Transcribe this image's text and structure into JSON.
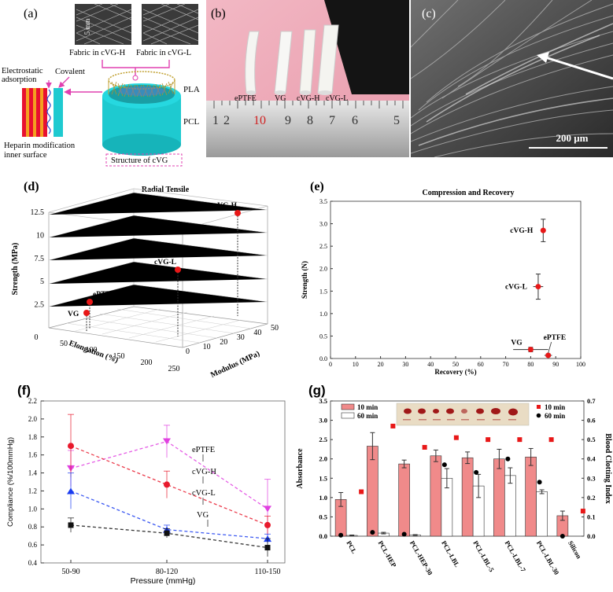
{
  "panel_a": {
    "label": "(a)",
    "scale_label": "5 mm",
    "fabric_h": "Fabric in cVG-H",
    "fabric_l": "Fabric in cVG-L",
    "electrostatic": "Electrostatic\nadsorption",
    "covalent": "Covalent",
    "pla": "PLA",
    "pcl": "PCL",
    "heparin": "Heparin modification\ninner surface",
    "structure": "Structure of cVG"
  },
  "panel_b": {
    "label": "(b)",
    "samples": [
      "ePTFE",
      "VG",
      "cVG-H",
      "cVG-L"
    ],
    "ruler_numbers": [
      "1",
      "2",
      "10",
      "9",
      "8",
      "7",
      "6",
      "5"
    ]
  },
  "panel_c": {
    "label": "(c)",
    "scale_label": "200 μm"
  },
  "panel_d": {
    "label": "(d)",
    "chart_data": {
      "type": "scatter",
      "title": "Radial Tensile",
      "xlabel": "Elongation (%)",
      "ylabel": "Modulus (MPa)",
      "zlabel": "Strength (MPa)",
      "x_ticks": [
        "0",
        "50",
        "100",
        "150",
        "200",
        "250"
      ],
      "y_ticks": [
        "0",
        "10",
        "20",
        "30",
        "40",
        "50"
      ],
      "z_ticks": [
        "2.5",
        "5",
        "7.5",
        "10",
        "12.5"
      ],
      "points": [
        {
          "name": "cVG-H",
          "elongation": 230,
          "modulus": 45,
          "strength": 12
        },
        {
          "name": "cVG-L",
          "elongation": 150,
          "modulus": 30,
          "strength": 6.8
        },
        {
          "name": "ePTFE",
          "elongation": 90,
          "modulus": 5,
          "strength": 3.2
        },
        {
          "name": "VG",
          "elongation": 85,
          "modulus": 2,
          "strength": 2.2
        }
      ]
    }
  },
  "panel_e": {
    "label": "(e)",
    "chart_data": {
      "type": "scatter",
      "title": "Compression and Recovery",
      "xlabel": "Recovery (%)",
      "ylabel": "Strength (N)",
      "xlim": [
        0,
        100
      ],
      "ylim": [
        0,
        3.5
      ],
      "x_ticks": [
        "0",
        "10",
        "20",
        "30",
        "40",
        "50",
        "60",
        "70",
        "80",
        "90",
        "100"
      ],
      "y_ticks": [
        "0.0",
        "0.5",
        "1.0",
        "1.5",
        "2.0",
        "2.5",
        "3.0",
        "3.5"
      ],
      "points": [
        {
          "name": "cVG-H",
          "x": 85,
          "y": 2.85,
          "xerr": 1,
          "yerr": 0.25
        },
        {
          "name": "cVG-L",
          "x": 83,
          "y": 1.6,
          "xerr": 2,
          "yerr": 0.28
        },
        {
          "name": "VG",
          "x": 80,
          "y": 0.2,
          "xerr": 7,
          "yerr": 0.05
        },
        {
          "name": "ePTFE",
          "x": 87,
          "y": 0.07,
          "xerr": 1.5,
          "yerr": 0.03
        }
      ]
    }
  },
  "panel_f": {
    "label": "(f)",
    "chart_data": {
      "type": "line",
      "xlabel": "Pressure (mmHg)",
      "ylabel": "Compliance (%/100mmHg)",
      "categories": [
        "50-90",
        "80-120",
        "110-150"
      ],
      "ylim": [
        0.4,
        2.2
      ],
      "y_ticks": [
        "0.4",
        "0.6",
        "0.8",
        "1.0",
        "1.2",
        "1.4",
        "1.6",
        "1.8",
        "2.0",
        "2.2"
      ],
      "series": [
        {
          "name": "ePTFE",
          "color": "#e040e0",
          "values": [
            1.45,
            1.75,
            1.0
          ],
          "errors": [
            0.2,
            0.18,
            0.33
          ]
        },
        {
          "name": "cVG-H",
          "color": "#e8192c",
          "values": [
            1.7,
            1.27,
            0.82
          ],
          "errors": [
            0.35,
            0.15,
            0.1
          ]
        },
        {
          "name": "cVG-L",
          "color": "#1a3cf0",
          "values": [
            1.2,
            0.77,
            0.67
          ],
          "errors": [
            0.2,
            0.05,
            0.05
          ]
        },
        {
          "name": "VG",
          "color": "#111111",
          "values": [
            0.82,
            0.73,
            0.57
          ],
          "errors": [
            0.08,
            0.05,
            0.1
          ]
        }
      ]
    }
  },
  "panel_g": {
    "label": "(g)",
    "chart_data": {
      "type": "bar",
      "ylabel": "Absorbance",
      "y2label": "Blood Clotting Index",
      "ylim": [
        0,
        3.5
      ],
      "y2lim": [
        0,
        0.7
      ],
      "y_ticks": [
        "0.0",
        "0.5",
        "1.0",
        "1.5",
        "2.0",
        "2.5",
        "3.0",
        "3.5"
      ],
      "y2_ticks": [
        "0.0",
        "0.1",
        "0.2",
        "0.3",
        "0.4",
        "0.5",
        "0.6",
        "0.7"
      ],
      "categories": [
        "PCL",
        "PCL-HEP",
        "PCL-HEP-30",
        "PCL-LBL",
        "PCL-LBL-5",
        "PCL-LBL-7",
        "PCL-LBL-30",
        "Silicon"
      ],
      "series": [
        {
          "name": "10 min",
          "values": [
            0.95,
            2.33,
            1.87,
            2.08,
            2.03,
            2.0,
            2.05,
            0.53
          ],
          "errors": [
            0.18,
            0.35,
            0.1,
            0.15,
            0.15,
            0.25,
            0.22,
            0.12
          ]
        },
        {
          "name": "60 min",
          "values": [
            0.02,
            0.08,
            0.03,
            1.5,
            1.3,
            1.57,
            1.15,
            0.0
          ],
          "errors": [
            0.01,
            0.02,
            0.01,
            0.25,
            0.3,
            0.2,
            0.05,
            0
          ]
        }
      ],
      "bci_10min": [
        0.23,
        0.57,
        0.46,
        0.51,
        0.5,
        0.5,
        0.5,
        0.13
      ],
      "bci_60min": [
        0.005,
        0.02,
        0.01,
        0.37,
        0.33,
        0.4,
        0.28,
        0.0
      ],
      "legend_left": [
        "10 min",
        "60 min"
      ],
      "legend_right": [
        "10 min",
        "60 min"
      ]
    }
  }
}
